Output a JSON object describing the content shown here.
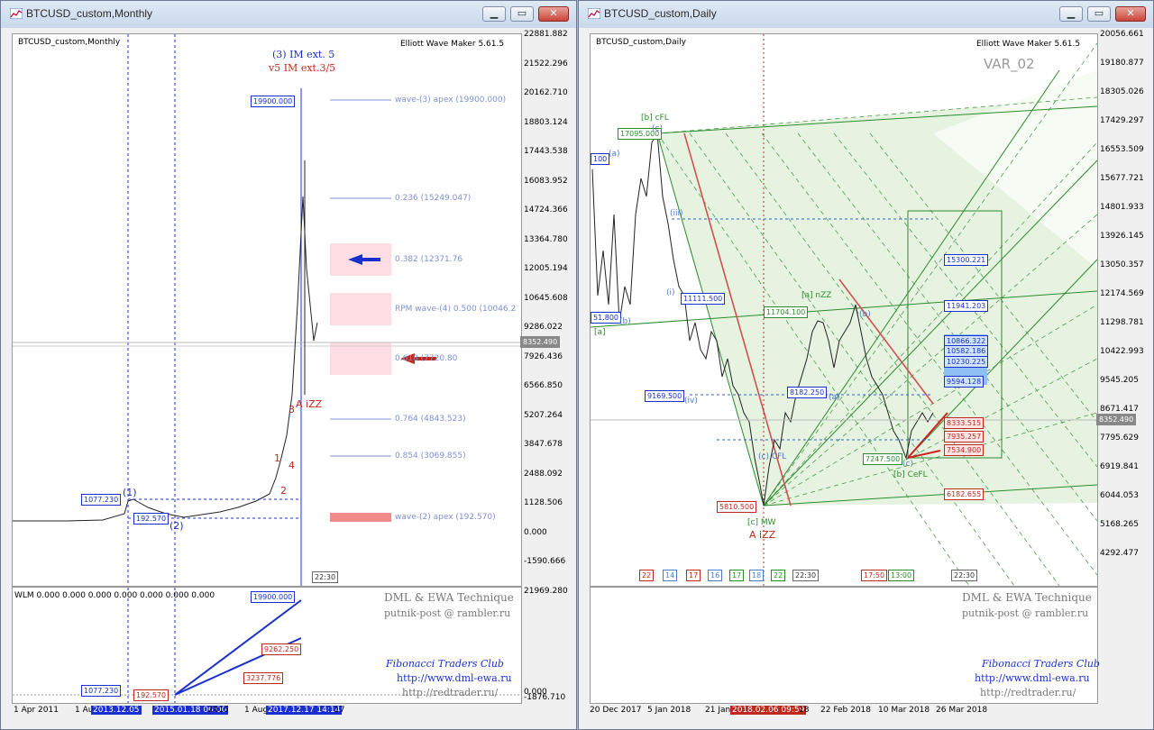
{
  "left": {
    "title": "BTCUSD_custom,Monthly",
    "inner_title": "BTCUSD_custom,Monthly",
    "ea": "Elliott Wave Maker 5.61.5",
    "wave_label_top": "(3) IM ext. 5",
    "wave_label_sub": "v5 IM ext.3/5",
    "price_axis": [
      "22881.882",
      "21522.296",
      "20162.710",
      "18803.124",
      "17443.538",
      "16083.952",
      "14724.366",
      "13364.780",
      "12005.194",
      "10645.608",
      "9286.022",
      "7926.436",
      "6566.850",
      "5207.264",
      "3847.678",
      "2488.092",
      "1128.506",
      "0.000",
      "-1590.666"
    ],
    "current_price": "8352.490",
    "fib_labels": [
      "wave-(3) apex (19900.000)",
      "0.236 (15249.047)",
      "0.382 (12371.76",
      "RPM wave-(4) 0.500 (10046.2",
      "0.618 (7720.80",
      "0.764 (4843.523)",
      "0.854 (3069.855)",
      "wave-(2) apex (192.570)"
    ],
    "boxes": [
      "19900.000",
      "1077.230",
      "192.570"
    ],
    "waves": [
      "(1)",
      "(2)",
      "1",
      "2",
      "3",
      "4",
      "A iZZ"
    ],
    "time_marker": "22:30",
    "sub_axis": [
      "21969.280",
      "0.000",
      "-1876.710"
    ],
    "sub_header": "WLM 0.000 0.000 0.000 0.000 0.000 0.000 0.000",
    "sub_boxes": [
      "19900.000",
      "9262.250",
      "3237.776",
      "1077.230",
      "192.570",
      "1077.230"
    ],
    "x_axis": [
      "1 Apr 2011",
      "1 Aug",
      "2013.12.05",
      "2015.01.18 00:00",
      "2015",
      "1 Aug",
      "2017.12.17 14:14",
      "17"
    ],
    "branding": [
      "DML & EWA Technique",
      "putnik-post @ rambler.ru",
      "Fibonacci   Traders   Club",
      "http://www.dml-ewa.ru",
      "http://redtrader.ru/"
    ]
  },
  "right": {
    "title": "BTCUSD_custom,Daily",
    "inner_title": "BTCUSD_custom,Daily",
    "ea": "Elliott Wave Maker 5.61.5",
    "var": "VAR_02",
    "price_axis": [
      "20056.661",
      "19180.877",
      "18305.026",
      "17429.297",
      "16553.509",
      "15677.721",
      "14801.933",
      "13926.145",
      "13050.357",
      "12174.569",
      "11298.781",
      "10422.993",
      "9545.205",
      "8671.417",
      "7795.629",
      "6919.841",
      "6044.053",
      "5168.265",
      "4292.477"
    ],
    "current_price": "8352.490",
    "boxes_green": [
      "17095.000",
      "11704.100",
      "7247.500"
    ],
    "boxes_blue": [
      "15300.221",
      "11941.203",
      "10866.322",
      "10582.186",
      "10230.225",
      "9594.128",
      "9169.500",
      "8182.250",
      "11111.500",
      "51.800",
      "100"
    ],
    "boxes_red": [
      "8333.515",
      "7935.257",
      "7534.900",
      "6182.655",
      "5810.500"
    ],
    "wave_labels": [
      "[b] cFL",
      "(c)",
      "(a)",
      "(iii)",
      "(i)",
      "(iv)",
      "(ii)",
      "[a]",
      "(b)",
      "[a] nZZ",
      "(a)",
      "(b)",
      "(c)",
      "[b] CeFL",
      "(c) CFL",
      "[c] MW",
      "A iZZ",
      "CeFL"
    ],
    "x_axis": [
      "20 Dec 2017",
      "5 Jan 2018",
      "21 Jan",
      "2018.02.06 09:59",
      "18",
      "22 Feb 2018",
      "10 Mar 2018",
      "26 Mar 2018"
    ],
    "time_bar": [
      "22",
      "14",
      "17",
      "16",
      "17",
      "18",
      "22",
      "22:30",
      "17:50",
      "13:00",
      "22:30"
    ],
    "branding": [
      "DML & EWA Technique",
      "putnik-post @ rambler.ru",
      "Fibonacci   Traders   Club",
      "http://www.dml-ewa.ru",
      "http://redtrader.ru/"
    ]
  },
  "colors": {
    "wave_blue": "#1a2fd0",
    "wave_red": "#c0281e",
    "fib_green": "#2c8a2c",
    "pink_zone": "#ffdde3"
  }
}
